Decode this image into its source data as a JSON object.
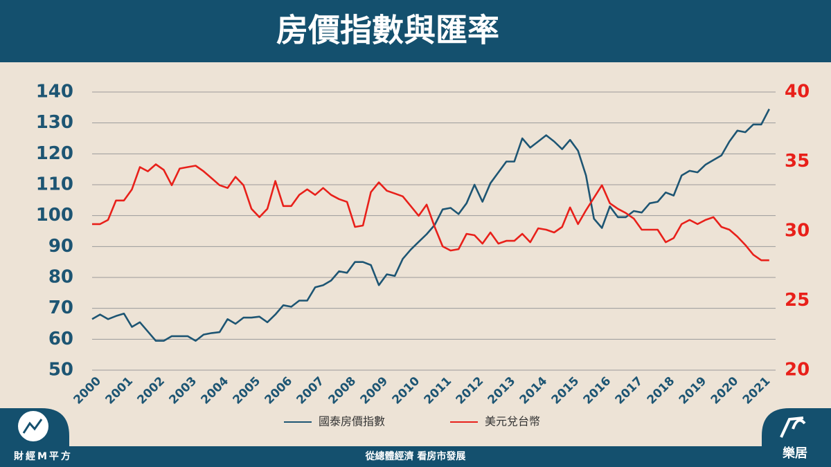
{
  "header": {
    "title": "房價指數與匯率"
  },
  "chart_data": {
    "type": "line",
    "x": [
      2000,
      2000.25,
      2000.5,
      2000.75,
      2001,
      2001.25,
      2001.5,
      2001.75,
      2002,
      2002.25,
      2002.5,
      2002.75,
      2003,
      2003.25,
      2003.5,
      2003.75,
      2004,
      2004.25,
      2004.5,
      2004.75,
      2005,
      2005.25,
      2005.5,
      2005.75,
      2006,
      2006.25,
      2006.5,
      2006.75,
      2007,
      2007.25,
      2007.5,
      2007.75,
      2008,
      2008.25,
      2008.5,
      2008.75,
      2009,
      2009.25,
      2009.5,
      2009.75,
      2010,
      2010.25,
      2010.5,
      2010.75,
      2011,
      2011.25,
      2011.5,
      2011.75,
      2012,
      2012.25,
      2012.5,
      2012.75,
      2013,
      2013.25,
      2013.5,
      2013.75,
      2014,
      2014.25,
      2014.5,
      2014.75,
      2015,
      2015.25,
      2015.5,
      2015.75,
      2016,
      2016.25,
      2016.5,
      2016.75,
      2017,
      2017.25,
      2017.5,
      2017.75,
      2018,
      2018.25,
      2018.5,
      2018.75,
      2019,
      2019.25,
      2019.5,
      2019.75,
      2020,
      2020.25,
      2020.5,
      2020.75,
      2021,
      2021.25
    ],
    "series": [
      {
        "name": "國泰房價指數",
        "color": "#1d5573",
        "values": [
          66.5,
          68,
          66.5,
          67.5,
          68.3,
          64,
          65.5,
          62.5,
          59.5,
          59.5,
          61,
          61,
          61,
          59.5,
          61.5,
          62,
          62.3,
          66.5,
          65,
          67,
          67,
          67.3,
          65.5,
          68,
          71,
          70.5,
          72.5,
          72.5,
          76.8,
          77.5,
          79,
          82,
          81.5,
          85,
          85,
          84,
          77.5,
          81,
          80.5,
          86,
          89,
          91.5,
          94,
          97,
          102,
          102.5,
          100.5,
          104,
          110,
          104.5,
          110.5,
          114,
          117.5,
          117.5,
          125,
          122,
          124,
          126,
          124,
          121.5,
          124.5,
          121,
          113,
          99,
          96,
          103,
          99.5,
          99.5,
          101.5,
          101,
          104,
          104.5,
          107.5,
          106.5,
          113,
          114.5,
          114,
          116.5,
          118,
          119.5,
          124,
          127.5,
          127,
          129.5,
          129.5,
          134.5
        ]
      },
      {
        "name": "美元兌台幣",
        "color": "#e8201a",
        "axis": "y2",
        "values": [
          30.5,
          30.5,
          30.8,
          32.2,
          32.2,
          33,
          34.6,
          34.3,
          34.8,
          34.4,
          33.3,
          34.5,
          34.6,
          34.7,
          34.3,
          33.8,
          33.3,
          33.1,
          33.9,
          33.3,
          31.6,
          31,
          31.6,
          33.6,
          31.8,
          31.8,
          32.6,
          33,
          32.6,
          33.1,
          32.6,
          32.3,
          32.1,
          30.3,
          30.4,
          32.8,
          33.5,
          32.9,
          32.7,
          32.5,
          31.8,
          31.1,
          31.9,
          30.3,
          28.9,
          28.6,
          28.7,
          29.8,
          29.7,
          29.1,
          29.9,
          29.1,
          29.3,
          29.3,
          29.8,
          29.2,
          30.2,
          30.1,
          29.9,
          30.3,
          31.7,
          30.5,
          31.5,
          32.4,
          33.3,
          32,
          31.6,
          31.3,
          30.9,
          30.1,
          30.1,
          30.1,
          29.2,
          29.5,
          30.5,
          30.8,
          30.5,
          30.8,
          31,
          30.3,
          30.1,
          29.6,
          29,
          28.3,
          27.9,
          27.9
        ]
      }
    ],
    "xlim": [
      2000,
      2021.45
    ],
    "xticks": [
      2000,
      2001,
      2002,
      2003,
      2004,
      2005,
      2006,
      2007,
      2008,
      2009,
      2010,
      2011,
      2012,
      2013,
      2014,
      2015,
      2016,
      2017,
      2018,
      2019,
      2020,
      2021
    ],
    "ylim": [
      50,
      140
    ],
    "yticks": [
      50,
      60,
      70,
      80,
      90,
      100,
      110,
      120,
      130,
      140
    ],
    "y2lim": [
      20,
      40
    ],
    "y2ticks": [
      20,
      25,
      30,
      35,
      40
    ],
    "grid": true,
    "legend": "bottom"
  },
  "footer": {
    "brand": "財經M平方",
    "slogan": "從總體經濟 看房市發展",
    "logo": "樂居"
  }
}
